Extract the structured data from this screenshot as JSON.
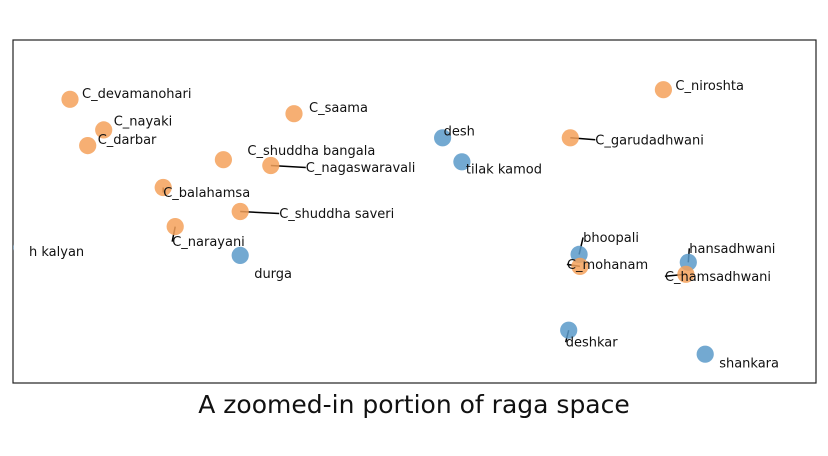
{
  "caption": "A zoomed-in portion of raga space",
  "colors": {
    "carnatic": "#f5a15a",
    "hindustani": "#5b9ac9",
    "frame": "#222222",
    "leader": "#000000"
  },
  "chart_data": {
    "type": "scatter",
    "title": "",
    "xlabel": "",
    "ylabel": "",
    "xlim": [
      0,
      100
    ],
    "ylim": [
      0,
      100
    ],
    "grid": false,
    "points": [
      {
        "label": "C_devamanohari",
        "x": 7.1,
        "y": 82.7,
        "group": "carnatic"
      },
      {
        "label": "C_nayaki",
        "x": 11.3,
        "y": 73.8,
        "group": "carnatic"
      },
      {
        "label": "C_darbar",
        "x": 9.3,
        "y": 69.2,
        "group": "carnatic"
      },
      {
        "label": "C_saama",
        "x": 35.0,
        "y": 78.5,
        "group": "carnatic"
      },
      {
        "label": "C_shuddha bangala",
        "x": 26.2,
        "y": 65.1,
        "group": "carnatic"
      },
      {
        "label": "C_nagaswaravali",
        "x": 32.1,
        "y": 63.4,
        "group": "carnatic"
      },
      {
        "label": "C_balahamsa",
        "x": 18.7,
        "y": 57.0,
        "group": "carnatic"
      },
      {
        "label": "C_shuddha saveri",
        "x": 28.3,
        "y": 50.0,
        "group": "carnatic"
      },
      {
        "label": "C_narayani",
        "x": 20.2,
        "y": 45.6,
        "group": "carnatic"
      },
      {
        "label": "h kalyan",
        "x": -1.0,
        "y": 39.5,
        "group": "hindustani"
      },
      {
        "label": "durga",
        "x": 28.3,
        "y": 37.2,
        "group": "hindustani"
      },
      {
        "label": "desh",
        "x": 53.5,
        "y": 71.5,
        "group": "hindustani"
      },
      {
        "label": "tilak kamod",
        "x": 55.9,
        "y": 64.5,
        "group": "hindustani"
      },
      {
        "label": "C_niroshta",
        "x": 81.0,
        "y": 85.5,
        "group": "carnatic"
      },
      {
        "label": "C_garudadhwani",
        "x": 69.4,
        "y": 71.5,
        "group": "carnatic"
      },
      {
        "label": "bhoopali",
        "x": 70.5,
        "y": 37.5,
        "group": "hindustani"
      },
      {
        "label": "C_mohanam",
        "x": 70.6,
        "y": 34.0,
        "group": "carnatic"
      },
      {
        "label": "hansadhwani",
        "x": 84.1,
        "y": 35.2,
        "group": "hindustani"
      },
      {
        "label": "C_hamsadhwani",
        "x": 83.8,
        "y": 31.7,
        "group": "carnatic"
      },
      {
        "label": "deshkar",
        "x": 69.2,
        "y": 15.4,
        "group": "hindustani"
      },
      {
        "label": "shankara",
        "x": 86.2,
        "y": 8.4,
        "group": "hindustani"
      }
    ]
  }
}
